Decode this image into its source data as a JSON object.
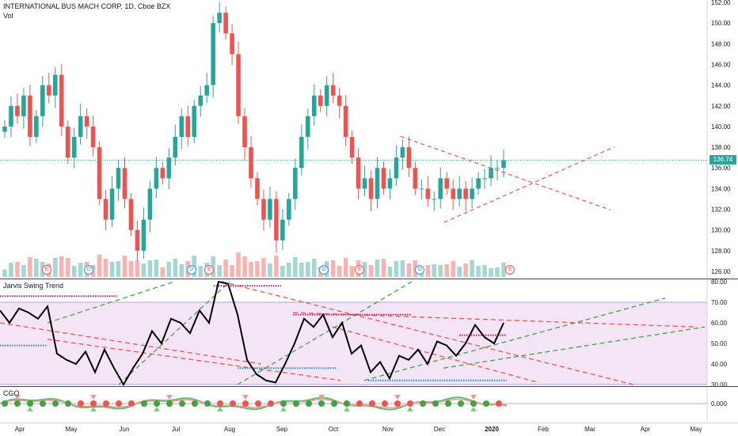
{
  "symbol_title": "INTERNATIONAL BUS MACH CORP, 1D, Cboe BZX",
  "volume_label": "Vol",
  "current_price": "136.74",
  "price_axis": [
    "152.00",
    "150.00",
    "148.00",
    "146.00",
    "144.00",
    "142.00",
    "140.00",
    "138.00",
    "136.00",
    "134.00",
    "132.00",
    "130.00",
    "128.00",
    "126.00"
  ],
  "indicator_title": "Jarvis Swing Trend",
  "indicator_axis": [
    "80.00",
    "70.00",
    "60.00",
    "50.00",
    "40.00",
    "30.00"
  ],
  "cgo_title": "CGO",
  "cgo_axis": [
    "0.000"
  ],
  "time_axis": [
    {
      "label": "Apr",
      "bold": false
    },
    {
      "label": "May",
      "bold": false
    },
    {
      "label": "Jun",
      "bold": false
    },
    {
      "label": "Jul",
      "bold": false
    },
    {
      "label": "Aug",
      "bold": false
    },
    {
      "label": "Sep",
      "bold": false
    },
    {
      "label": "Oct",
      "bold": false
    },
    {
      "label": "Nov",
      "bold": false
    },
    {
      "label": "Dec",
      "bold": false
    },
    {
      "label": "2020",
      "bold": true
    },
    {
      "label": "Feb",
      "bold": false
    },
    {
      "label": "Mar",
      "bold": false
    },
    {
      "label": "Apr",
      "bold": false
    },
    {
      "label": "May",
      "bold": false
    }
  ],
  "events": [
    {
      "type": "earnings",
      "label": "E"
    },
    {
      "type": "dividend",
      "label": "D"
    },
    {
      "type": "dividend",
      "label": "D"
    },
    {
      "type": "earnings",
      "label": "E"
    },
    {
      "type": "dividend",
      "label": "D"
    },
    {
      "type": "earnings",
      "label": "E"
    },
    {
      "type": "dividend",
      "label": "D"
    },
    {
      "type": "earnings",
      "label": "E"
    }
  ],
  "colors": {
    "up": "#26a69a",
    "down": "#ef5350",
    "line": "#000000",
    "band": "#f3e5f5",
    "trend_red": "#ef5350",
    "trend_green": "#43a047"
  },
  "chart_data": {
    "type": "line",
    "price_close_series": [
      140,
      142,
      141,
      143,
      139,
      141,
      144,
      143,
      145,
      140,
      137,
      139,
      141,
      140,
      138,
      133,
      131,
      134,
      136,
      133,
      130,
      128,
      131,
      134,
      136,
      135,
      137,
      139,
      141,
      139,
      142,
      143,
      144,
      150,
      151,
      149,
      147,
      141,
      138,
      135,
      133,
      131,
      133,
      129,
      131,
      133,
      136,
      139,
      141,
      143,
      142,
      144,
      143,
      142,
      139,
      137,
      134,
      135,
      133,
      136,
      134,
      135,
      137,
      138,
      136,
      134,
      134,
      133,
      133,
      135,
      134,
      133,
      134,
      133,
      134,
      135,
      135,
      136,
      136,
      136.74
    ],
    "indicator_series": [
      66,
      60,
      67,
      65,
      62,
      68,
      45,
      42,
      40,
      46,
      36,
      47,
      38,
      30,
      38,
      45,
      56,
      50,
      62,
      60,
      55,
      66,
      60,
      80,
      79,
      64,
      42,
      35,
      32,
      31,
      40,
      50,
      62,
      58,
      64,
      53,
      60,
      45,
      49,
      36,
      41,
      33,
      44,
      42,
      47,
      40,
      51,
      49,
      44,
      50,
      59,
      53,
      50,
      60
    ],
    "price_ylim": [
      126,
      152
    ],
    "indicator_ylim": [
      30,
      80
    ]
  }
}
